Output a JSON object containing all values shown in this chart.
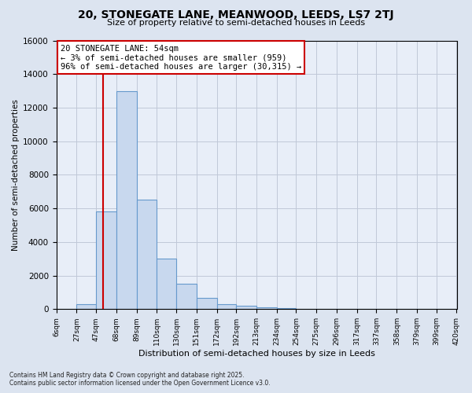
{
  "title": "20, STONEGATE LANE, MEANWOOD, LEEDS, LS7 2TJ",
  "subtitle": "Size of property relative to semi-detached houses in Leeds",
  "xlabel": "Distribution of semi-detached houses by size in Leeds",
  "ylabel": "Number of semi-detached properties",
  "annotation_line1": "20 STONEGATE LANE: 54sqm",
  "annotation_line2": "← 3% of semi-detached houses are smaller (959)",
  "annotation_line3": "96% of semi-detached houses are larger (30,315) →",
  "footer_line1": "Contains HM Land Registry data © Crown copyright and database right 2025.",
  "footer_line2": "Contains public sector information licensed under the Open Government Licence v3.0.",
  "property_size": 54,
  "bin_edges": [
    6,
    27,
    47,
    68,
    89,
    110,
    130,
    151,
    172,
    192,
    213,
    234,
    254,
    275,
    296,
    317,
    337,
    358,
    379,
    399,
    420
  ],
  "bin_counts": [
    0,
    300,
    5800,
    13000,
    6500,
    3000,
    1500,
    650,
    300,
    200,
    130,
    60,
    30,
    10,
    5,
    2,
    1,
    0,
    0,
    0
  ],
  "bar_color": "#c8d8ee",
  "bar_edge_color": "#6699cc",
  "red_line_color": "#cc0000",
  "annotation_box_facecolor": "#ffffff",
  "annotation_box_edgecolor": "#cc0000",
  "background_color": "#dce4f0",
  "plot_bg_color": "#e8eef8",
  "grid_color": "#c0c8d8",
  "ylim": [
    0,
    16000
  ],
  "yticks": [
    0,
    2000,
    4000,
    6000,
    8000,
    10000,
    12000,
    14000,
    16000
  ],
  "tick_labels": [
    "6sqm",
    "27sqm",
    "47sqm",
    "68sqm",
    "89sqm",
    "110sqm",
    "130sqm",
    "151sqm",
    "172sqm",
    "192sqm",
    "213sqm",
    "234sqm",
    "254sqm",
    "275sqm",
    "296sqm",
    "317sqm",
    "337sqm",
    "358sqm",
    "379sqm",
    "399sqm",
    "420sqm"
  ]
}
